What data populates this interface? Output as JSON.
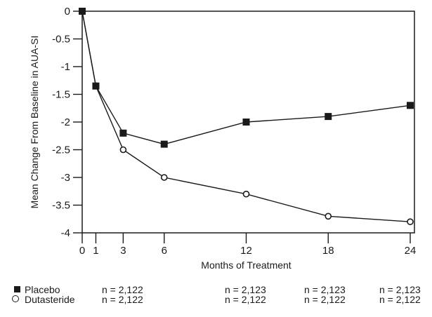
{
  "figure": {
    "background": "#ffffff",
    "ink_color": "#1a1a1a"
  },
  "chart_data": {
    "type": "line",
    "title": "",
    "xlabel": "Months of Treatment",
    "ylabel": "Mean Change From Baseline in AUA-SI",
    "xlim": [
      0,
      24
    ],
    "ylim": [
      -4,
      0
    ],
    "x_tick_values": [
      0,
      1,
      3,
      6,
      12,
      18,
      24
    ],
    "x_tick_labels": [
      "0",
      "1",
      "3",
      "6",
      "12",
      "18",
      "24"
    ],
    "y_tick_values": [
      0,
      -0.5,
      -1,
      -1.5,
      -2,
      -2.5,
      -3,
      -3.5,
      -4
    ],
    "y_tick_labels": [
      "0",
      "-0.5",
      "-1",
      "-1.5",
      "-2",
      "-2.5",
      "-3",
      "-3.5",
      "-4"
    ],
    "grid": false,
    "frame": "box",
    "legend_position": "below",
    "series": [
      {
        "name": "Placebo",
        "marker": "filled-square",
        "x": [
          0,
          1,
          3,
          6,
          12,
          18,
          24
        ],
        "y": [
          0,
          -1.35,
          -2.2,
          -2.4,
          -2.0,
          -1.9,
          -1.7
        ]
      },
      {
        "name": "Dutasteride",
        "marker": "open-circle",
        "x": [
          0,
          1,
          3,
          6,
          12,
          18,
          24
        ],
        "y": [
          0,
          -1.35,
          -2.5,
          -3.0,
          -3.3,
          -3.7,
          -3.8
        ]
      }
    ]
  },
  "legend": {
    "rows": [
      {
        "marker": "filled-square",
        "label": "Placebo",
        "counts": [
          "n = 2,122",
          "n = 2,123",
          "n = 2,123",
          "n = 2,123"
        ]
      },
      {
        "marker": "open-circle",
        "label": "Dutasteride",
        "counts": [
          "n = 2,122",
          "n = 2,122",
          "n = 2,122",
          "n = 2,122"
        ]
      }
    ]
  }
}
